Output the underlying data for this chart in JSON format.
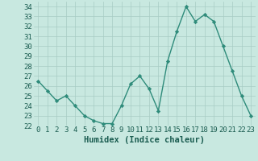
{
  "x": [
    0,
    1,
    2,
    3,
    4,
    5,
    6,
    7,
    8,
    9,
    10,
    11,
    12,
    13,
    14,
    15,
    16,
    17,
    18,
    19,
    20,
    21,
    22,
    23
  ],
  "y": [
    26.5,
    25.5,
    24.5,
    25.0,
    24.0,
    23.0,
    22.5,
    22.2,
    22.2,
    24.0,
    26.2,
    27.0,
    25.7,
    23.5,
    28.5,
    31.5,
    34.0,
    32.5,
    33.2,
    32.5,
    30.0,
    27.5,
    25.0,
    23.0
  ],
  "line_color": "#2e8b7a",
  "marker": "D",
  "marker_size": 2.2,
  "bg_color": "#c8e8e0",
  "grid_color": "#a8ccc4",
  "xlabel": "Humidex (Indice chaleur)",
  "ylim": [
    22,
    34.5
  ],
  "xlim": [
    -0.5,
    23.5
  ],
  "yticks": [
    22,
    23,
    24,
    25,
    26,
    27,
    28,
    29,
    30,
    31,
    32,
    33,
    34
  ],
  "xtick_labels": [
    "0",
    "1",
    "2",
    "3",
    "4",
    "5",
    "6",
    "7",
    "8",
    "9",
    "10",
    "11",
    "12",
    "13",
    "14",
    "15",
    "16",
    "17",
    "18",
    "19",
    "20",
    "21",
    "22",
    "23"
  ],
  "xlabel_fontsize": 7.5,
  "tick_fontsize": 6.5,
  "tick_color": "#1a5c50",
  "line_width": 1.0
}
